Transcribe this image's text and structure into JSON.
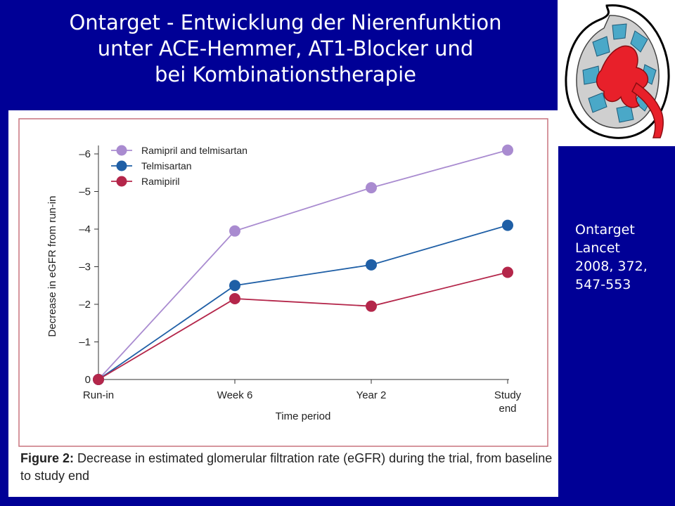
{
  "title_lines": [
    "Ontarget - Entwicklung der Nierenfunktion",
    "unter ACE-Hemmer, AT1-Blocker und",
    "bei Kombinationstherapie"
  ],
  "citation_lines": [
    "Ontarget",
    "Lancet",
    "2008, 372,",
    "547-553"
  ],
  "caption": {
    "label": "Figure 2:",
    "text": " Decrease in estimated glomerular filtration rate (eGFR) during the trial, from baseline to study end"
  },
  "colors": {
    "background": "#000096",
    "frame": "#c8737d",
    "combination": "#a98bd0",
    "telmisartan": "#1f5fa6",
    "ramipril": "#b4264a"
  },
  "chart_data": {
    "type": "line",
    "categories": [
      "Run-in",
      "Week 6",
      "Year 2",
      "Study end"
    ],
    "category_labels": [
      [
        "Run-in"
      ],
      [
        "Week 6"
      ],
      [
        "Year 2"
      ],
      [
        "Study",
        "end"
      ]
    ],
    "xlabel": "Time period",
    "ylabel": "Decrease in eGFR from run-in",
    "ylim": [
      0,
      -6
    ],
    "yticks": [
      "0",
      "–1",
      "–2",
      "–3",
      "–4",
      "–5",
      "–6"
    ],
    "grid": false,
    "legend_position": "top-left",
    "series": [
      {
        "name": "Ramipril and telmisartan",
        "color_key": "combination",
        "values": [
          0,
          -3.95,
          -5.1,
          -6.1
        ]
      },
      {
        "name": "Telmisartan",
        "color_key": "telmisartan",
        "values": [
          0,
          -2.5,
          -3.05,
          -4.1
        ]
      },
      {
        "name": "Ramipiril",
        "color_key": "ramipril",
        "values": [
          0,
          -2.15,
          -1.95,
          -2.85
        ]
      }
    ]
  }
}
